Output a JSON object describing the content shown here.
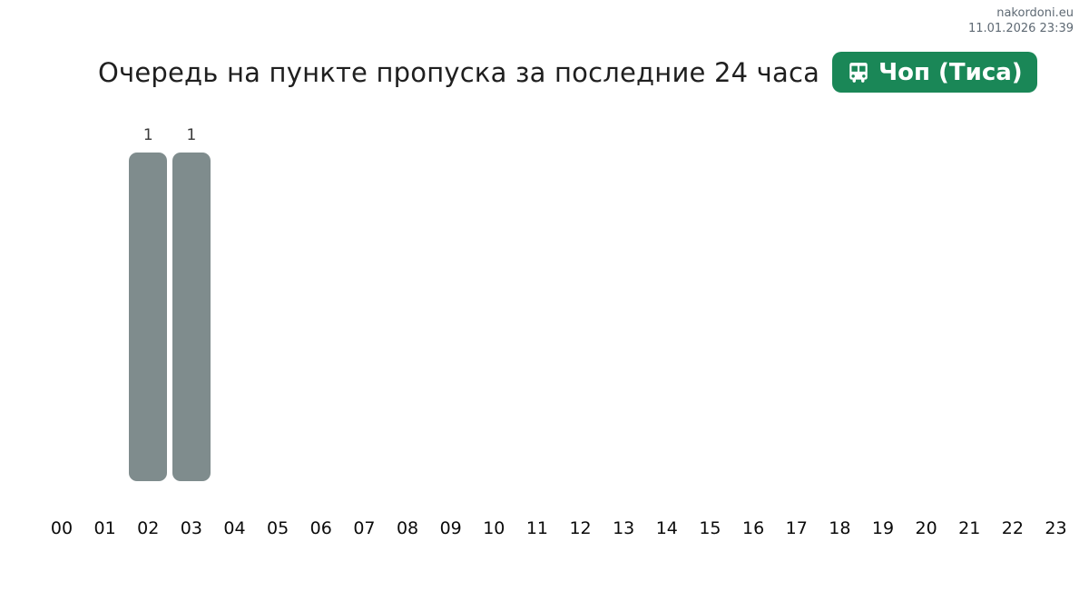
{
  "watermark": {
    "site": "nakordoni.eu",
    "datetime": "11.01.2026 23:39"
  },
  "header": {
    "title": "Очередь на пункте пропуска за последние 24 часа",
    "badge": {
      "icon": "bus-icon",
      "label": "Чоп (Тиса)",
      "color": "#1a8757",
      "text_color": "#ffffff"
    }
  },
  "chart_data": {
    "type": "bar",
    "title": "Очередь на пункте пропуска за последние 24 часа",
    "xlabel": "",
    "ylabel": "",
    "categories": [
      "00",
      "01",
      "02",
      "03",
      "04",
      "05",
      "06",
      "07",
      "08",
      "09",
      "10",
      "11",
      "12",
      "13",
      "14",
      "15",
      "16",
      "17",
      "18",
      "19",
      "20",
      "21",
      "22",
      "23"
    ],
    "values": [
      0,
      0,
      1,
      1,
      0,
      0,
      0,
      0,
      0,
      0,
      0,
      0,
      0,
      0,
      0,
      0,
      0,
      0,
      0,
      0,
      0,
      0,
      0,
      0
    ],
    "ylim": [
      0,
      1
    ],
    "grid": false,
    "legend": false,
    "bar_color": "#7f8c8d",
    "value_label_color": "#3a3a3a",
    "axis_label_color": "#0b0b0b",
    "value_labels": {
      "02": 1,
      "03": 1
    }
  }
}
